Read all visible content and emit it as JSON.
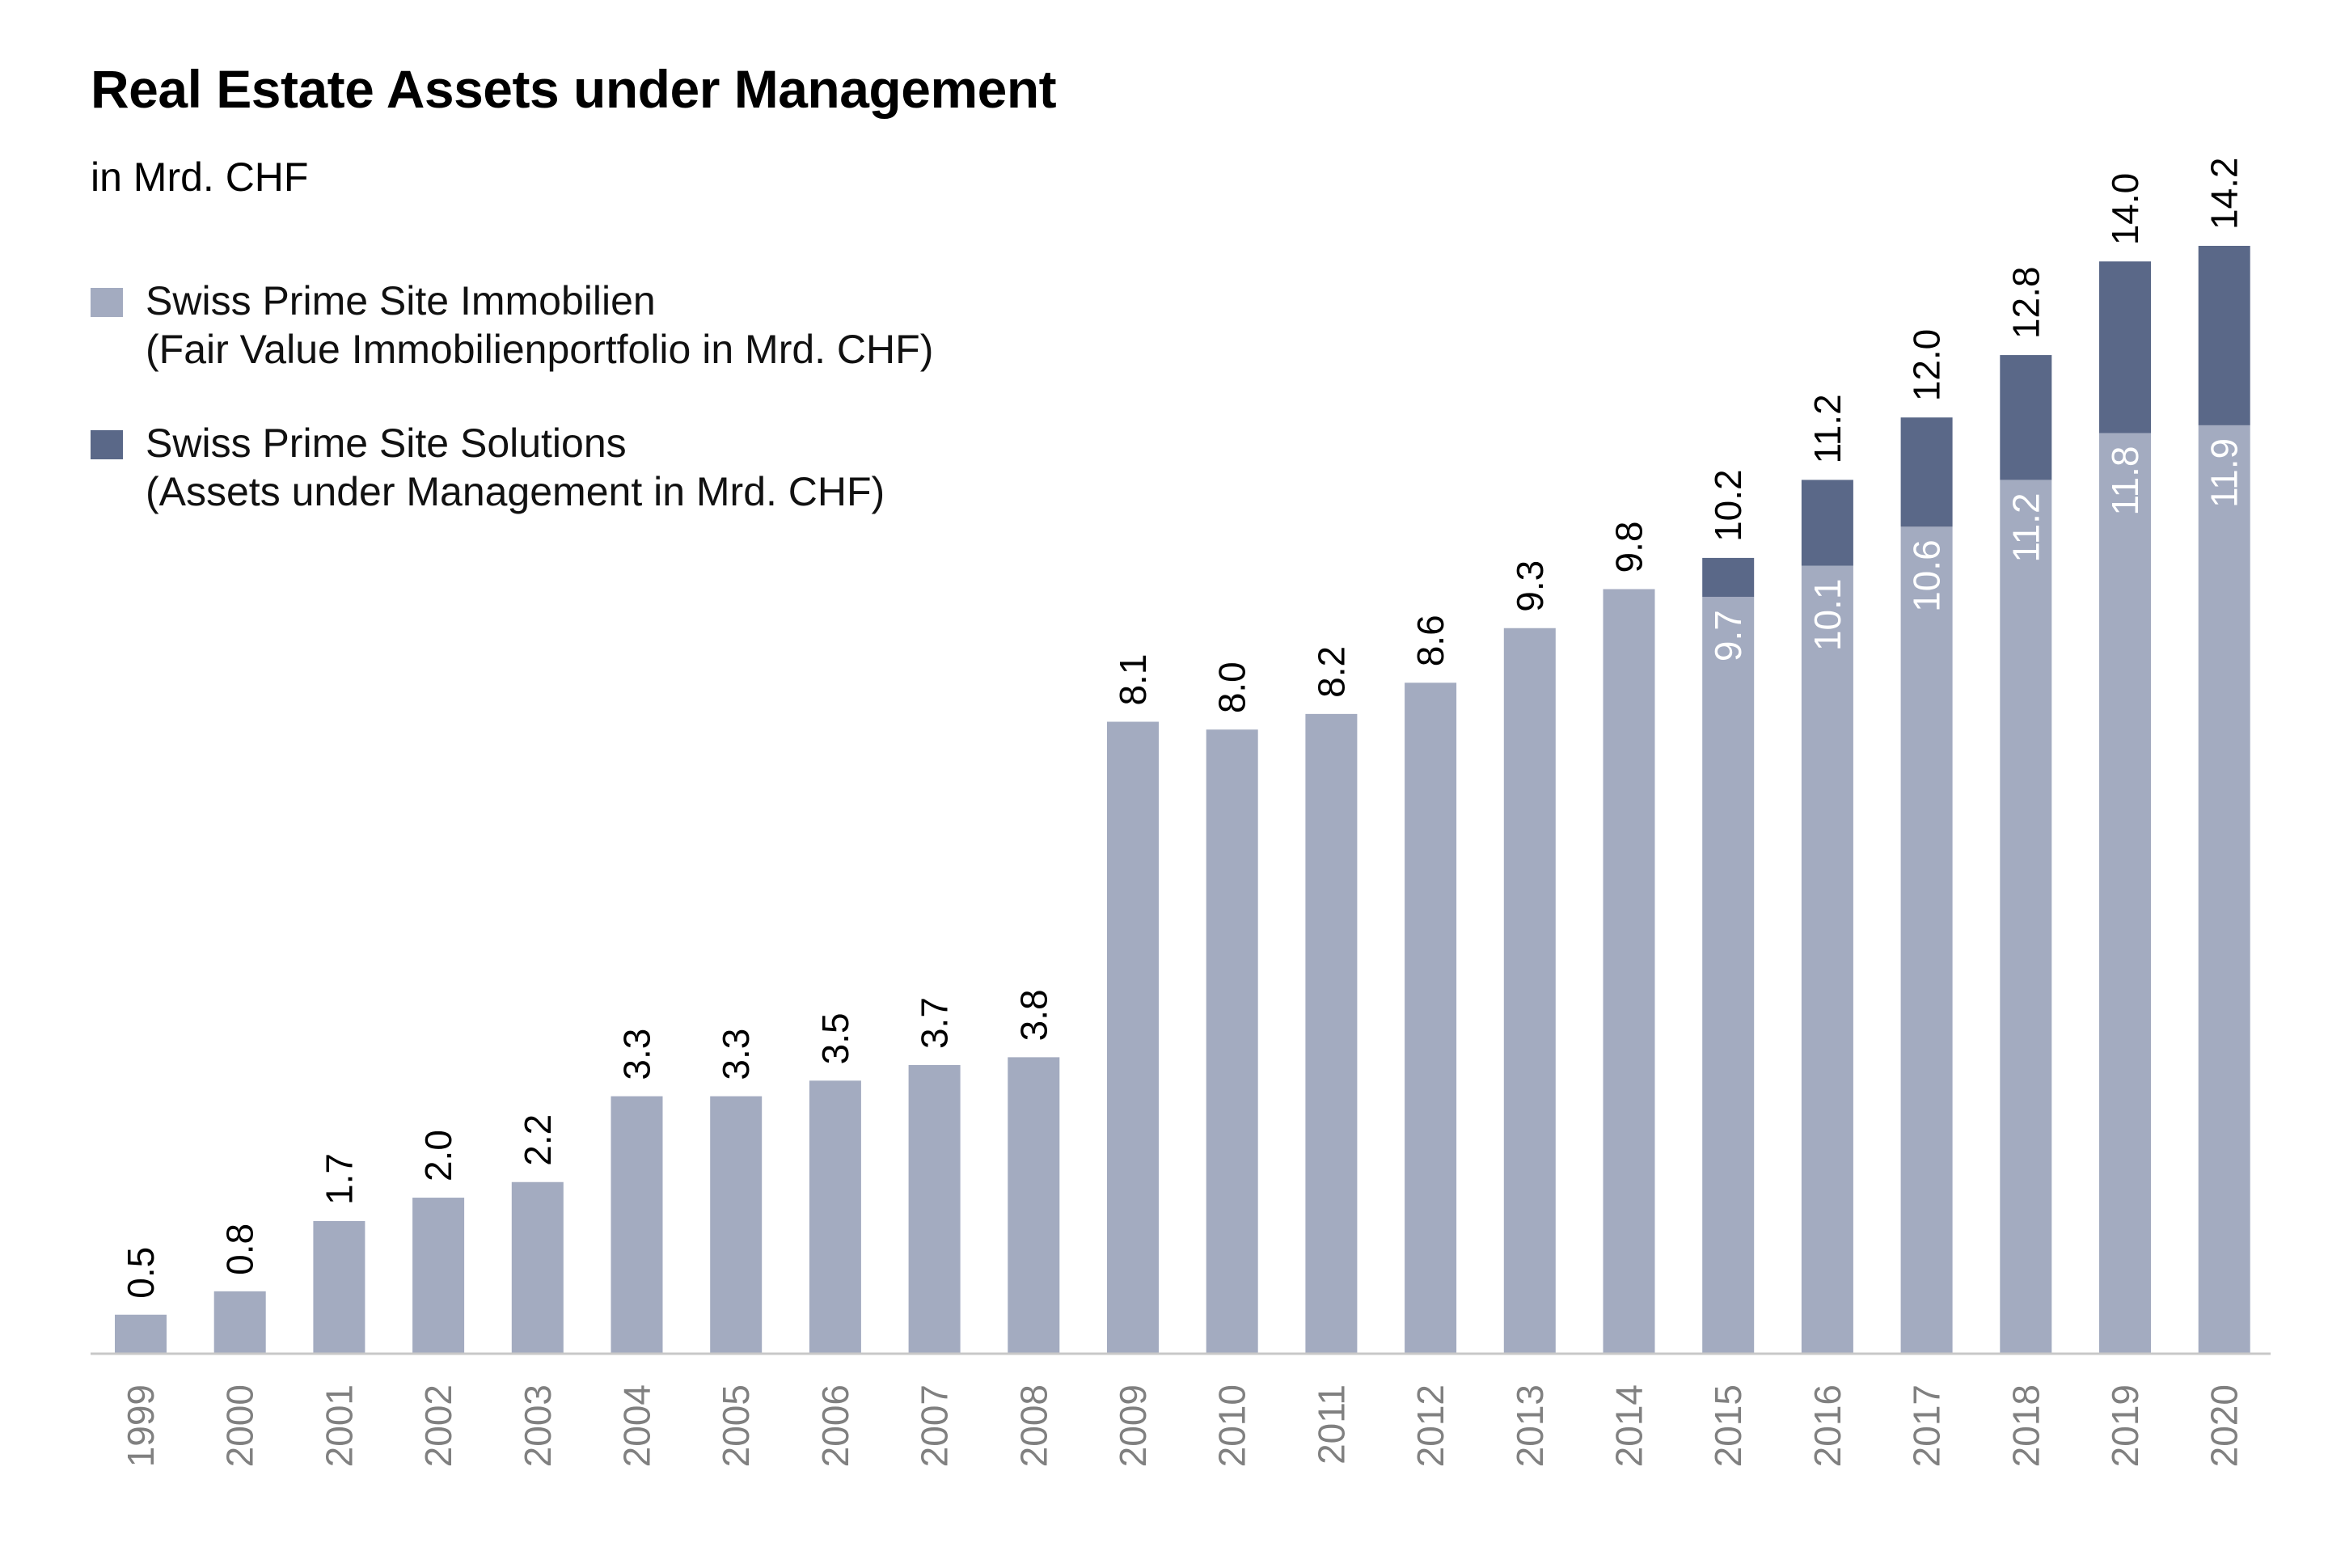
{
  "chart_data": {
    "type": "bar",
    "stacked": true,
    "title": "Real Estate Assets under Management",
    "subtitle": "in Mrd. CHF",
    "legend_position": "top-left",
    "grid": false,
    "categories": [
      "1999",
      "2000",
      "2001",
      "2002",
      "2003",
      "2004",
      "2005",
      "2006",
      "2007",
      "2008",
      "2009",
      "2010",
      "2011",
      "2012",
      "2013",
      "2014",
      "2015",
      "2016",
      "2017",
      "2018",
      "2019",
      "2020"
    ],
    "series": [
      {
        "name": "Swiss Prime Site Immobilien",
        "name_line2": "(Fair Value Immobilienportfolio in Mrd. CHF)",
        "color": "#a3abc0",
        "values": [
          0.5,
          0.8,
          1.7,
          2.0,
          2.2,
          3.3,
          3.3,
          3.5,
          3.7,
          3.8,
          8.1,
          8.0,
          8.2,
          8.6,
          9.3,
          9.8,
          9.7,
          10.1,
          10.6,
          11.2,
          11.8,
          11.9
        ],
        "value_labels": [
          "",
          "",
          "",
          "",
          "",
          "",
          "",
          "",
          "",
          "",
          "",
          "",
          "",
          "",
          "",
          "",
          "9.7",
          "10.1",
          "10.6",
          "11.2",
          "11.8",
          "11.9"
        ]
      },
      {
        "name": "Swiss Prime Site Solutions",
        "name_line2": "(Assets under Management in Mrd. CHF)",
        "color": "#5a6888",
        "values": [
          0,
          0,
          0,
          0,
          0,
          0,
          0,
          0,
          0,
          0,
          0,
          0,
          0,
          0,
          0,
          0,
          0.5,
          1.1,
          1.4,
          1.6,
          2.2,
          2.3
        ]
      }
    ],
    "totals": [
      0.5,
      0.8,
      1.7,
      2.0,
      2.2,
      3.3,
      3.3,
      3.5,
      3.7,
      3.8,
      8.1,
      8.0,
      8.2,
      8.6,
      9.3,
      9.8,
      10.2,
      11.2,
      12.0,
      12.8,
      14.0,
      14.2
    ],
    "total_labels": [
      "0.5",
      "0.8",
      "1.7",
      "2.0",
      "2.2",
      "3.3",
      "3.3",
      "3.5",
      "3.7",
      "3.8",
      "8.1",
      "8.0",
      "8.2",
      "8.6",
      "9.3",
      "9.8",
      "10.2",
      "11.2",
      "12.0",
      "12.8",
      "14.0",
      "14.2"
    ],
    "ylim": [
      0,
      14.2
    ],
    "colors": {
      "axis": "#c8c8c8",
      "tick_label": "#808080",
      "inner_label": "#ffffff",
      "total_label": "#000000"
    }
  }
}
